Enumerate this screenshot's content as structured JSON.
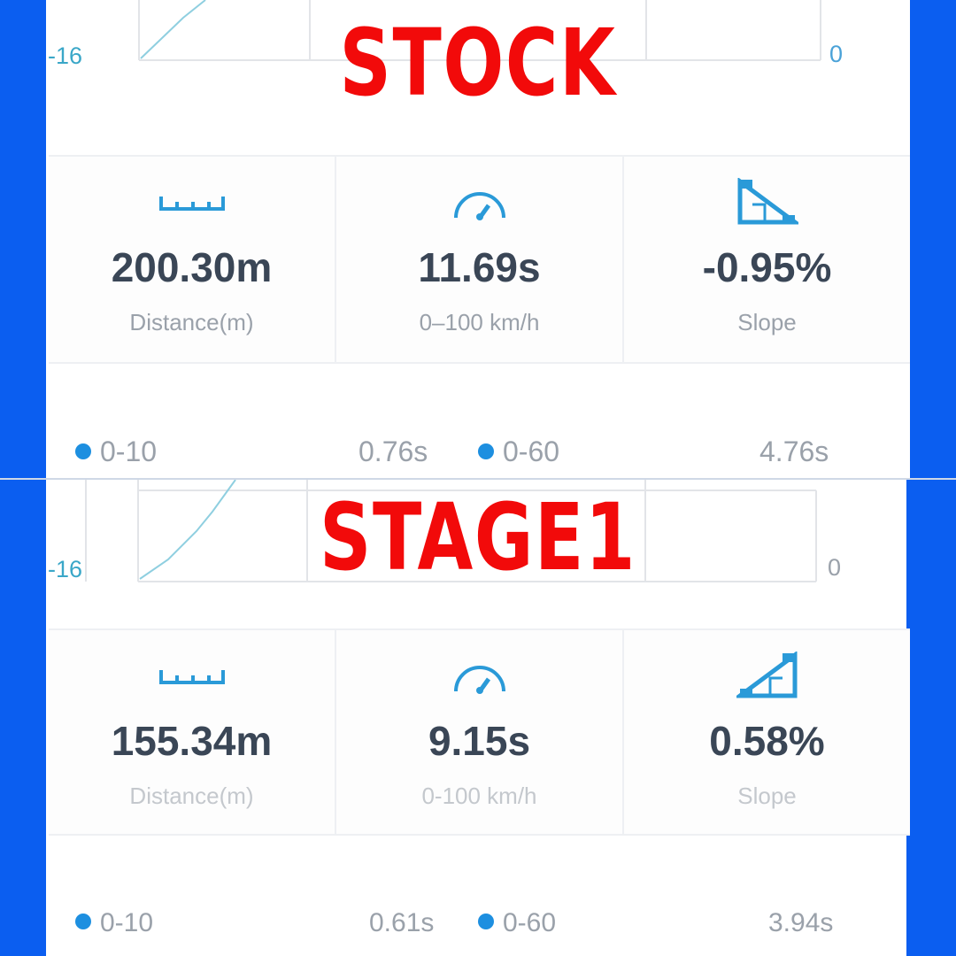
{
  "colors": {
    "side": "#0b5ef0",
    "stamp": "#f20a0a",
    "accent": "#2a9ad8"
  },
  "stock": {
    "stamp": "STOCK",
    "axis_left": "-16",
    "axis_right": "0",
    "stats": [
      {
        "icon": "ruler-icon",
        "value": "200.30m",
        "label": "Distance(m)"
      },
      {
        "icon": "speedometer-icon",
        "value": "11.69s",
        "label": "0–100 km/h"
      },
      {
        "icon": "slope-down-icon",
        "value": "-0.95%",
        "label": "Slope"
      }
    ],
    "legend": [
      {
        "label": "0-10",
        "value": "0.76s"
      },
      {
        "label": "0-60",
        "value": "4.76s"
      }
    ]
  },
  "stage1": {
    "stamp": "STAGE1",
    "axis_left": "-16",
    "axis_right": "0",
    "stats": [
      {
        "icon": "ruler-icon",
        "value": "155.34m",
        "label": "Distance(m)"
      },
      {
        "icon": "speedometer-icon",
        "value": "9.15s",
        "label": "0-100 km/h"
      },
      {
        "icon": "slope-up-icon",
        "value": "0.58%",
        "label": "Slope"
      }
    ],
    "legend": [
      {
        "label": "0-10",
        "value": "0.61s"
      },
      {
        "label": "0-60",
        "value": "3.94s"
      }
    ]
  }
}
